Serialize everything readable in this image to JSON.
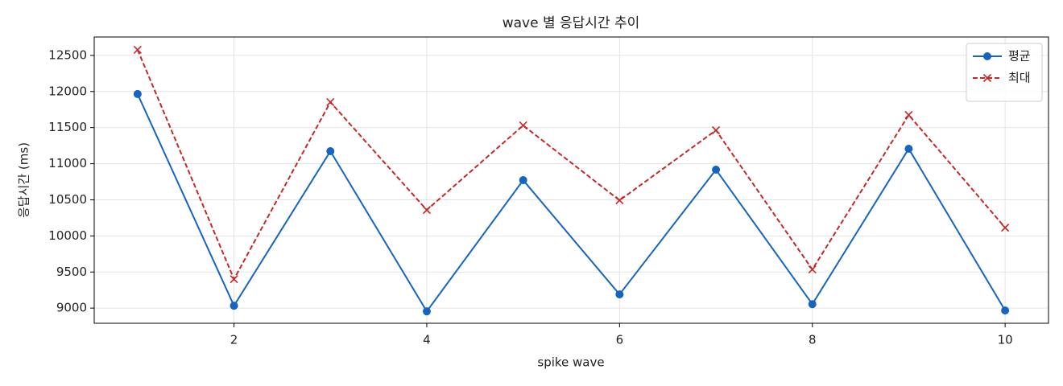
{
  "chart_data": {
    "type": "line",
    "title": "wave 별 응답시간 추이",
    "x_label": "spike wave",
    "y_label": "응답시간 (ms)",
    "x": [
      1,
      2,
      3,
      4,
      5,
      6,
      7,
      8,
      9,
      10
    ],
    "series": [
      {
        "name": "평균",
        "color": "#1565c0",
        "line_style": "solid",
        "marker": "circle",
        "values": [
          11965,
          9033,
          11173,
          8955,
          10772,
          9190,
          10917,
          9055,
          11207,
          8967
        ]
      },
      {
        "name": "최대",
        "color": "#c62828",
        "line_style": "dashed",
        "marker": "x",
        "values": [
          12578,
          9401,
          11853,
          10359,
          11530,
          10493,
          11463,
          9535,
          11675,
          10114
        ]
      }
    ],
    "xlim": [
      0.55,
      10.45
    ],
    "xticks": [
      2,
      4,
      6,
      8,
      10
    ],
    "ylim": [
      8790,
      12755
    ],
    "yticks": [
      9000,
      9500,
      10000,
      10500,
      11000,
      11500,
      12000,
      12500
    ],
    "grid": true,
    "legend": "upper-right"
  }
}
